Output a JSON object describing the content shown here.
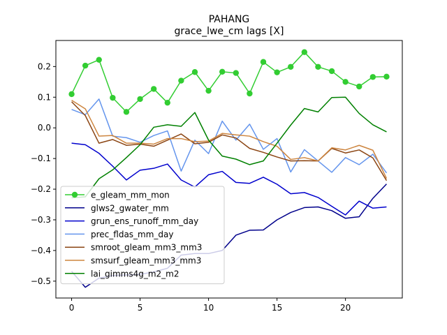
{
  "chart_data": {
    "type": "line",
    "title": "PAHANG",
    "subtitle": "grace_lwe_cm lags [X]",
    "xlabel": "",
    "ylabel": "",
    "xlim": [
      -1.15,
      24.15
    ],
    "ylim": [
      -0.555,
      0.285
    ],
    "xticks": [
      0,
      5,
      10,
      15,
      20
    ],
    "yticks": [
      -0.5,
      -0.4,
      -0.3,
      -0.2,
      -0.1,
      0.0,
      0.1,
      0.2
    ],
    "ytick_labels": [
      "−0.5",
      "−0.4",
      "−0.3",
      "−0.2",
      "−0.1",
      "0.0",
      "0.1",
      "0.2"
    ],
    "legend_position": "lower-left",
    "x": [
      0,
      1,
      2,
      3,
      4,
      5,
      6,
      7,
      8,
      9,
      10,
      11,
      12,
      13,
      14,
      15,
      16,
      17,
      18,
      19,
      20,
      21,
      22,
      23
    ],
    "series": [
      {
        "name": "e_gleam_mm_mon",
        "color": "#32cd32",
        "markers": true,
        "values": [
          0.11,
          0.203,
          0.222,
          0.098,
          0.052,
          0.094,
          0.127,
          0.082,
          0.154,
          0.182,
          0.121,
          0.183,
          0.179,
          0.112,
          0.215,
          0.181,
          0.199,
          0.247,
          0.199,
          0.185,
          0.15,
          0.135,
          0.166,
          0.167
        ]
      },
      {
        "name": "glws2_gwater_mm",
        "color": "#00008b",
        "markers": false,
        "values": [
          -0.468,
          -0.52,
          -0.49,
          -0.482,
          -0.48,
          -0.478,
          -0.47,
          -0.458,
          -0.415,
          -0.41,
          -0.41,
          -0.4,
          -0.35,
          -0.334,
          -0.333,
          -0.3,
          -0.276,
          -0.26,
          -0.258,
          -0.27,
          -0.295,
          -0.29,
          -0.23,
          -0.183
        ]
      },
      {
        "name": "grun_ens_runoff_mm_day",
        "color": "#0000cd",
        "markers": false,
        "values": [
          -0.05,
          -0.055,
          -0.083,
          -0.125,
          -0.17,
          -0.138,
          -0.132,
          -0.118,
          -0.17,
          -0.193,
          -0.153,
          -0.142,
          -0.178,
          -0.181,
          -0.161,
          -0.184,
          -0.215,
          -0.211,
          -0.227,
          -0.256,
          -0.284,
          -0.239,
          -0.262,
          -0.258
        ]
      },
      {
        "name": "prec_fldas_mm_day",
        "color": "#6495ed",
        "markers": false,
        "values": [
          0.06,
          0.043,
          0.094,
          -0.027,
          -0.032,
          -0.047,
          -0.025,
          -0.01,
          -0.141,
          -0.04,
          -0.084,
          0.022,
          -0.04,
          0.012,
          -0.07,
          -0.035,
          -0.144,
          -0.071,
          -0.108,
          -0.145,
          -0.097,
          -0.12,
          -0.086,
          -0.147
        ]
      },
      {
        "name": "smroot_gleam_mm3_mm3",
        "color": "#8b4513",
        "markers": false,
        "values": [
          0.085,
          0.04,
          -0.05,
          -0.038,
          -0.057,
          -0.053,
          -0.06,
          -0.04,
          -0.02,
          -0.052,
          -0.047,
          -0.023,
          -0.033,
          -0.067,
          -0.08,
          -0.095,
          -0.108,
          -0.107,
          -0.108,
          -0.067,
          -0.082,
          -0.072,
          -0.098,
          -0.172
        ]
      },
      {
        "name": "smsurf_gleam_mm3_mm3",
        "color": "#cd853f",
        "markers": false,
        "values": [
          0.09,
          0.062,
          -0.027,
          -0.025,
          -0.05,
          -0.05,
          -0.053,
          -0.035,
          -0.035,
          -0.045,
          -0.043,
          -0.018,
          -0.023,
          -0.027,
          -0.045,
          -0.06,
          -0.103,
          -0.097,
          -0.108,
          -0.065,
          -0.072,
          -0.057,
          -0.073,
          -0.165
        ]
      },
      {
        "name": "lai_gimms4g_m2_m2",
        "color": "#008000",
        "markers": false,
        "values": [
          -0.228,
          -0.225,
          -0.166,
          -0.137,
          -0.097,
          -0.055,
          0.002,
          0.01,
          0.005,
          0.05,
          -0.04,
          -0.092,
          -0.102,
          -0.12,
          -0.108,
          -0.05,
          0.009,
          0.063,
          0.052,
          0.099,
          0.1,
          0.047,
          0.01,
          -0.013
        ]
      }
    ]
  }
}
